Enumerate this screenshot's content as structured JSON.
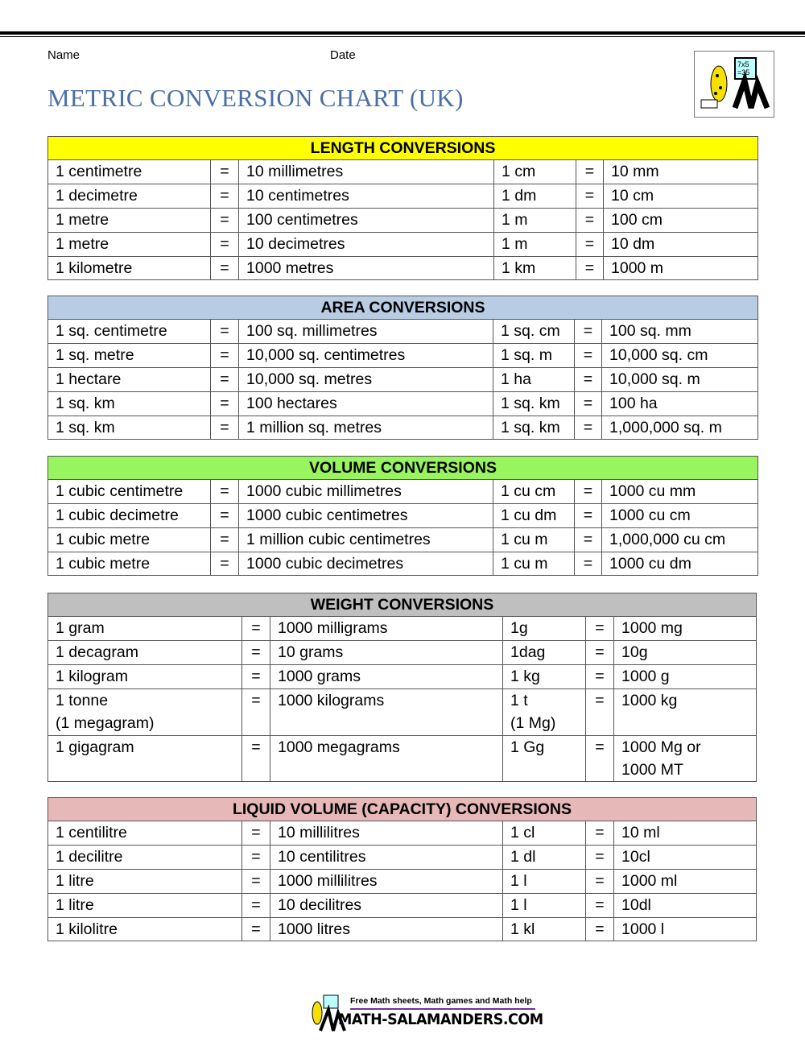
{
  "header": {
    "name_label": "Name",
    "date_label": "Date",
    "title": "METRIC CONVERSION CHART (UK)",
    "logo_text": "7x5 =35"
  },
  "tables": [
    {
      "title": "LENGTH CONVERSIONS",
      "color": "#ffff00",
      "rows": [
        [
          "1 centimetre",
          "=",
          "10 millimetres",
          "1 cm",
          "=",
          "10 mm"
        ],
        [
          "1 decimetre",
          "=",
          "10 centimetres",
          "1 dm",
          "=",
          "10 cm"
        ],
        [
          "1 metre",
          "=",
          "100 centimetres",
          "1 m",
          "=",
          "100 cm"
        ],
        [
          "1 metre",
          "=",
          "10 decimetres",
          "1 m",
          "=",
          "10 dm"
        ],
        [
          "1 kilometre",
          "=",
          "1000 metres",
          "1 km",
          "=",
          "1000 m"
        ]
      ]
    },
    {
      "title": "AREA CONVERSIONS",
      "color": "#b8cce4",
      "rows": [
        [
          "1 sq. centimetre",
          "=",
          "100 sq. millimetres",
          "1 sq. cm",
          "=",
          "100 sq. mm"
        ],
        [
          "1 sq. metre",
          "=",
          "10,000 sq. centimetres",
          "1 sq. m",
          "=",
          "10,000 sq. cm"
        ],
        [
          "1 hectare",
          "=",
          "10,000 sq. metres",
          "1 ha",
          "=",
          "10,000 sq. m"
        ],
        [
          "1 sq. km",
          "=",
          "100 hectares",
          "1 sq. km",
          "=",
          "100 ha"
        ],
        [
          "1 sq. km",
          "=",
          "1 million sq. metres",
          "1 sq. km",
          "=",
          "1,000,000 sq. m"
        ]
      ]
    },
    {
      "title": "VOLUME CONVERSIONS",
      "color": "#99f55f",
      "rows": [
        [
          "1 cubic centimetre",
          "=",
          "1000 cubic millimetres",
          "1 cu cm",
          "=",
          "1000 cu mm"
        ],
        [
          "1 cubic decimetre",
          "=",
          "1000 cubic centimetres",
          "1 cu dm",
          "=",
          "1000 cu cm"
        ],
        [
          "1 cubic metre",
          "=",
          "1 million cubic centimetres",
          "1 cu m",
          "=",
          "1,000,000 cu cm"
        ],
        [
          "1 cubic metre",
          "=",
          "1000 cubic decimetres",
          "1 cu m",
          "=",
          "1000 cu dm"
        ]
      ]
    },
    {
      "title": "WEIGHT CONVERSIONS",
      "color": "#bfbfbf",
      "rows": [
        [
          "1 gram",
          "=",
          "1000 milligrams",
          "1g",
          "=",
          "1000 mg"
        ],
        [
          "1 decagram",
          "=",
          "10 grams",
          "1dag",
          "=",
          "10g"
        ],
        [
          "1 kilogram",
          "=",
          "1000 grams",
          "1 kg",
          "=",
          "1000 g"
        ],
        [
          "1 tonne\n(1 megagram)",
          "=",
          "1000 kilograms",
          "1 t\n(1 Mg)",
          "=",
          "1000 kg"
        ],
        [
          "1 gigagram",
          "=",
          "1000 megagrams",
          "1 Gg",
          "=",
          "1000 Mg or\n1000 MT"
        ]
      ]
    },
    {
      "title": "LIQUID VOLUME (CAPACITY) CONVERSIONS",
      "color": "#e6b8b7",
      "rows": [
        [
          "1 centilitre",
          "=",
          "10 millilitres",
          "1 cl",
          "=",
          "10 ml"
        ],
        [
          "1 decilitre",
          "=",
          "10 centilitres",
          "1 dl",
          "=",
          "10cl"
        ],
        [
          "1 litre",
          "=",
          "1000 millilitres",
          "1 l",
          "=",
          "1000 ml"
        ],
        [
          "1 litre",
          "=",
          "10 decilitres",
          "1 l",
          "=",
          "10dl"
        ],
        [
          "1 kilolitre",
          "=",
          "1000 litres",
          "1 kl",
          "=",
          "1000 l"
        ]
      ]
    }
  ],
  "footer": {
    "tagline": "Free Math sheets, Math games and Math help",
    "site": "MATH-SALAMANDERS.COM"
  }
}
